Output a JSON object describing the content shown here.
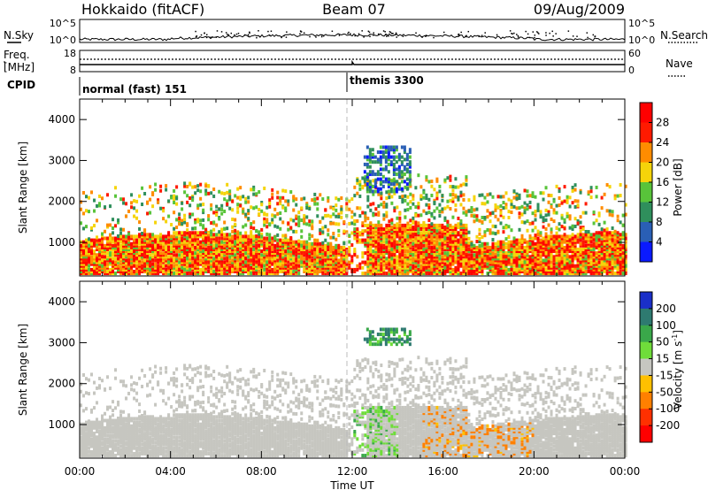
{
  "header": {
    "title": "Hokkaido (fitACF)",
    "beam": "Beam 07",
    "date": "09/Aug/2009"
  },
  "summary_panels": {
    "nsky_label": "N.Sky",
    "nsearch_label": "N.Search",
    "freq_label_1": "Freq.",
    "freq_label_2": "[MHz]",
    "nave_label": "Nave",
    "cpid_label": "CPID",
    "noise_ticks_left": [
      "10^5",
      "10^0"
    ],
    "noise_ticks_right": [
      "10^5",
      "10^0"
    ],
    "freq_ticks_left": [
      "18",
      "8"
    ],
    "nave_ticks_right": [
      "60",
      "0"
    ],
    "cpid_segments": [
      {
        "label": "normal (fast) 151",
        "start_hour": 0.0,
        "end_hour": 12.0
      },
      {
        "label": "themis 3300",
        "start_hour": 12.0,
        "end_hour": 24.0
      }
    ]
  },
  "chart_data": [
    {
      "type": "heatmap",
      "title": "",
      "xlabel": "",
      "ylabel": "Slant Range [km]",
      "x_range_hours": [
        0,
        24
      ],
      "ylim": [
        180,
        4500
      ],
      "y_ticks": [
        1000,
        2000,
        3000,
        4000
      ],
      "colorbar": {
        "label": "Power [dB]",
        "range": [
          0,
          32
        ],
        "ticks": [
          4,
          8,
          12,
          16,
          20,
          24,
          28
        ],
        "colors": [
          "#0a1aff",
          "#2a5fb5",
          "#2f8f5c",
          "#58c43a",
          "#f5d40a",
          "#ff8c00",
          "#ff1a00",
          "#ff0000"
        ]
      }
    },
    {
      "type": "heatmap",
      "title": "",
      "xlabel": "Time UT",
      "ylabel": "Slant Range [km]",
      "x_range_hours": [
        0,
        24
      ],
      "x_tick_labels": [
        "00:00",
        "04:00",
        "08:00",
        "12:00",
        "16:00",
        "20:00",
        "00:00"
      ],
      "ylim": [
        180,
        4500
      ],
      "y_ticks": [
        1000,
        2000,
        3000,
        4000
      ],
      "colorbar": {
        "label": "Velocity [m s-1]",
        "label_main": "Velocity [m s",
        "label_sup": "-1",
        "label_end": "]",
        "ticks": [
          "200",
          "100",
          "50",
          "15",
          "-15",
          "-50",
          "-100",
          "-200"
        ],
        "colors": [
          "#1a2fc8",
          "#2e7a70",
          "#3aa84a",
          "#6fdd3a",
          "#c6c6c0",
          "#ffc000",
          "#ff8000",
          "#ff3000",
          "#ff0000"
        ]
      }
    }
  ]
}
